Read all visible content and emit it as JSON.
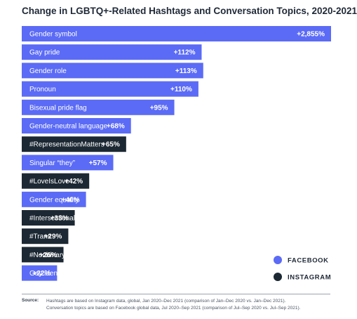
{
  "title": "Change in LGBTQ+-Related Hashtags and Conversation Topics, 2020-2021",
  "colors": {
    "facebook": "#5b6bf5",
    "instagram": "#1c2833"
  },
  "legend": {
    "facebook": "FACEBOOK",
    "instagram": "INSTAGRAM"
  },
  "source": {
    "label": "Source:",
    "line1": "Hashtags are based on Instagram data, global, Jan 2020–Dec 2021 (comparison of Jan–Dec 2020 vs. Jan–Dec 2021).",
    "line2": "Conversation topics are based on Facebook global data, Jul 2020–Sep 2021 (comparison of Jul–Sep 2020 vs. Jul–Sep 2021)."
  },
  "chart_data": {
    "type": "bar",
    "orientation": "horizontal",
    "title": "Change in LGBTQ+-Related Hashtags and Conversation Topics, 2020-2021",
    "categories": [
      "Gender symbol",
      "Gay pride",
      "Gender role",
      "Pronoun",
      "Bisexual pride flag",
      "Gender-neutral language",
      "#RepresentationMatters",
      "Singular “they”",
      "#LoveIsLove",
      "Gender equality",
      "#Intersectional",
      "#Trans",
      "#Nonbinary",
      "Gay identity"
    ],
    "values": [
      2855,
      112,
      113,
      110,
      95,
      68,
      65,
      57,
      42,
      40,
      33,
      29,
      26,
      22
    ],
    "value_labels": [
      "+2,855%",
      "+112%",
      "+113%",
      "+110%",
      "+95%",
      "+68%",
      "+65%",
      "+57%",
      "+42%",
      "+40%",
      "+33%",
      "+29%",
      "+26%",
      "+22%"
    ],
    "platform": [
      "facebook",
      "facebook",
      "facebook",
      "facebook",
      "facebook",
      "facebook",
      "instagram",
      "facebook",
      "instagram",
      "facebook",
      "instagram",
      "instagram",
      "instagram",
      "facebook"
    ],
    "unit": "%",
    "axis_break": "Gender symbol bar truncated",
    "legend_position": "bottom-right"
  }
}
